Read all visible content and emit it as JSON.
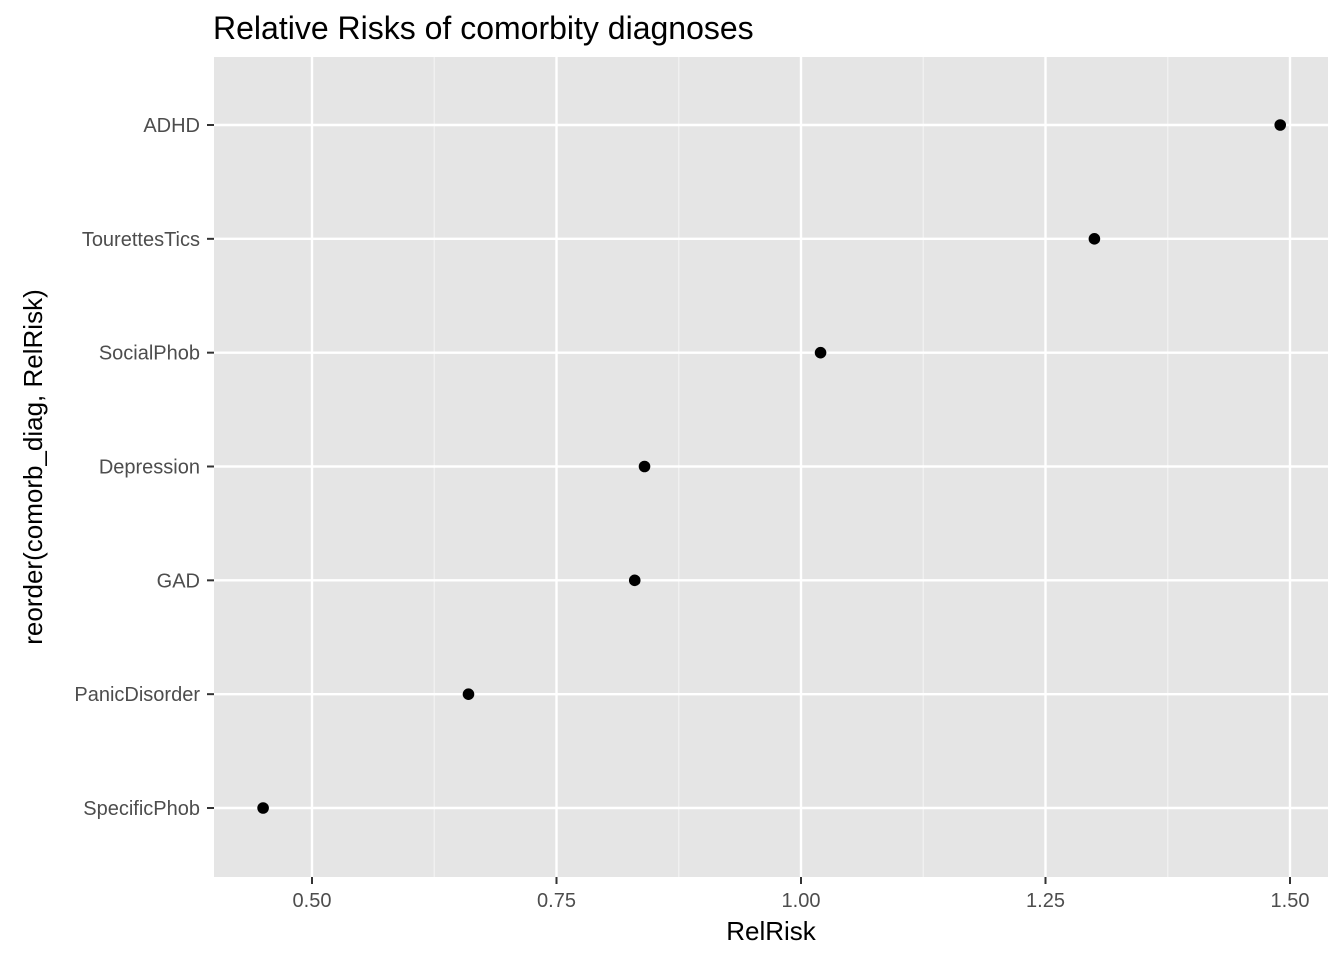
{
  "chart_data": {
    "type": "scatter",
    "title": "Relative Risks of comorbity diagnoses",
    "xlabel": "RelRisk",
    "ylabel": "reorder(comorb_diag, RelRisk)",
    "xlim": [
      0.4,
      1.53
    ],
    "xticks": [
      0.5,
      0.75,
      1.0,
      1.25,
      1.5
    ],
    "xtick_labels": [
      "0.50",
      "0.75",
      "1.00",
      "1.25",
      "1.50"
    ],
    "categories": [
      "SpecificPhob",
      "PanicDisorder",
      "GAD",
      "Depression",
      "SocialPhob",
      "TourettesTics",
      "ADHD"
    ],
    "values": [
      0.45,
      0.66,
      0.83,
      0.84,
      1.02,
      1.3,
      1.49
    ],
    "grid": true,
    "legend": "none",
    "colors": {
      "panel_background": "#e5e5e5",
      "grid_major": "#ffffff",
      "grid_minor": "#f2f2f2",
      "point": "#000000",
      "tick": "#333333"
    }
  }
}
